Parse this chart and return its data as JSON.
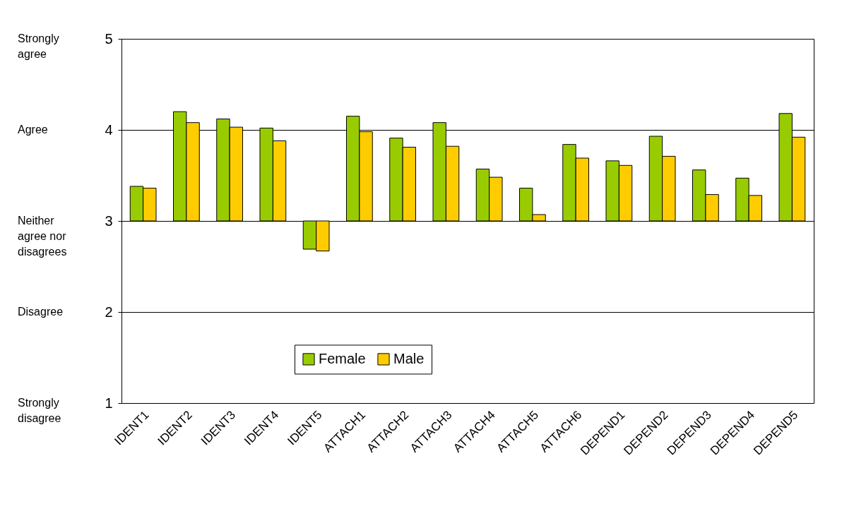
{
  "chart_data": {
    "type": "bar",
    "categories": [
      "IDENT1",
      "IDENT2",
      "IDENT3",
      "IDENT4",
      "IDENT5",
      "ATTACH1",
      "ATTACH2",
      "ATTACH3",
      "ATTACH4",
      "ATTACH5",
      "ATTACH6",
      "DEPEND1",
      "DEPEND2",
      "DEPEND3",
      "DEPEND4",
      "DEPEND5"
    ],
    "series": [
      {
        "name": "Female",
        "color": "#99cc00",
        "base": [
          3,
          3,
          3,
          3,
          3,
          3,
          3,
          3,
          3,
          3,
          3,
          3,
          3,
          3,
          3,
          3
        ],
        "values": [
          0.38,
          1.2,
          1.12,
          1.02,
          -0.31,
          1.15,
          0.91,
          1.08,
          0.57,
          0.36,
          0.84,
          0.66,
          0.93,
          0.56,
          0.47,
          1.18
        ]
      },
      {
        "name": "Male",
        "color": "#ffcc00",
        "base": [
          3,
          3,
          3,
          3,
          3,
          3,
          3,
          3,
          3,
          3,
          3,
          3,
          3,
          3,
          3,
          3
        ],
        "values": [
          0.36,
          1.08,
          1.03,
          0.88,
          -0.33,
          0.98,
          0.81,
          0.82,
          0.48,
          0.07,
          0.69,
          0.61,
          0.71,
          0.29,
          0.28,
          0.92
        ]
      }
    ],
    "ylim": [
      1,
      5
    ],
    "yticks": [
      1,
      2,
      3,
      4,
      5
    ],
    "annotations": [
      "Strongly agree",
      "Agree",
      "Neither agree nor disagrees",
      "Disagree",
      "Strongly disagree"
    ],
    "grid": "y",
    "legend": "bottom"
  }
}
